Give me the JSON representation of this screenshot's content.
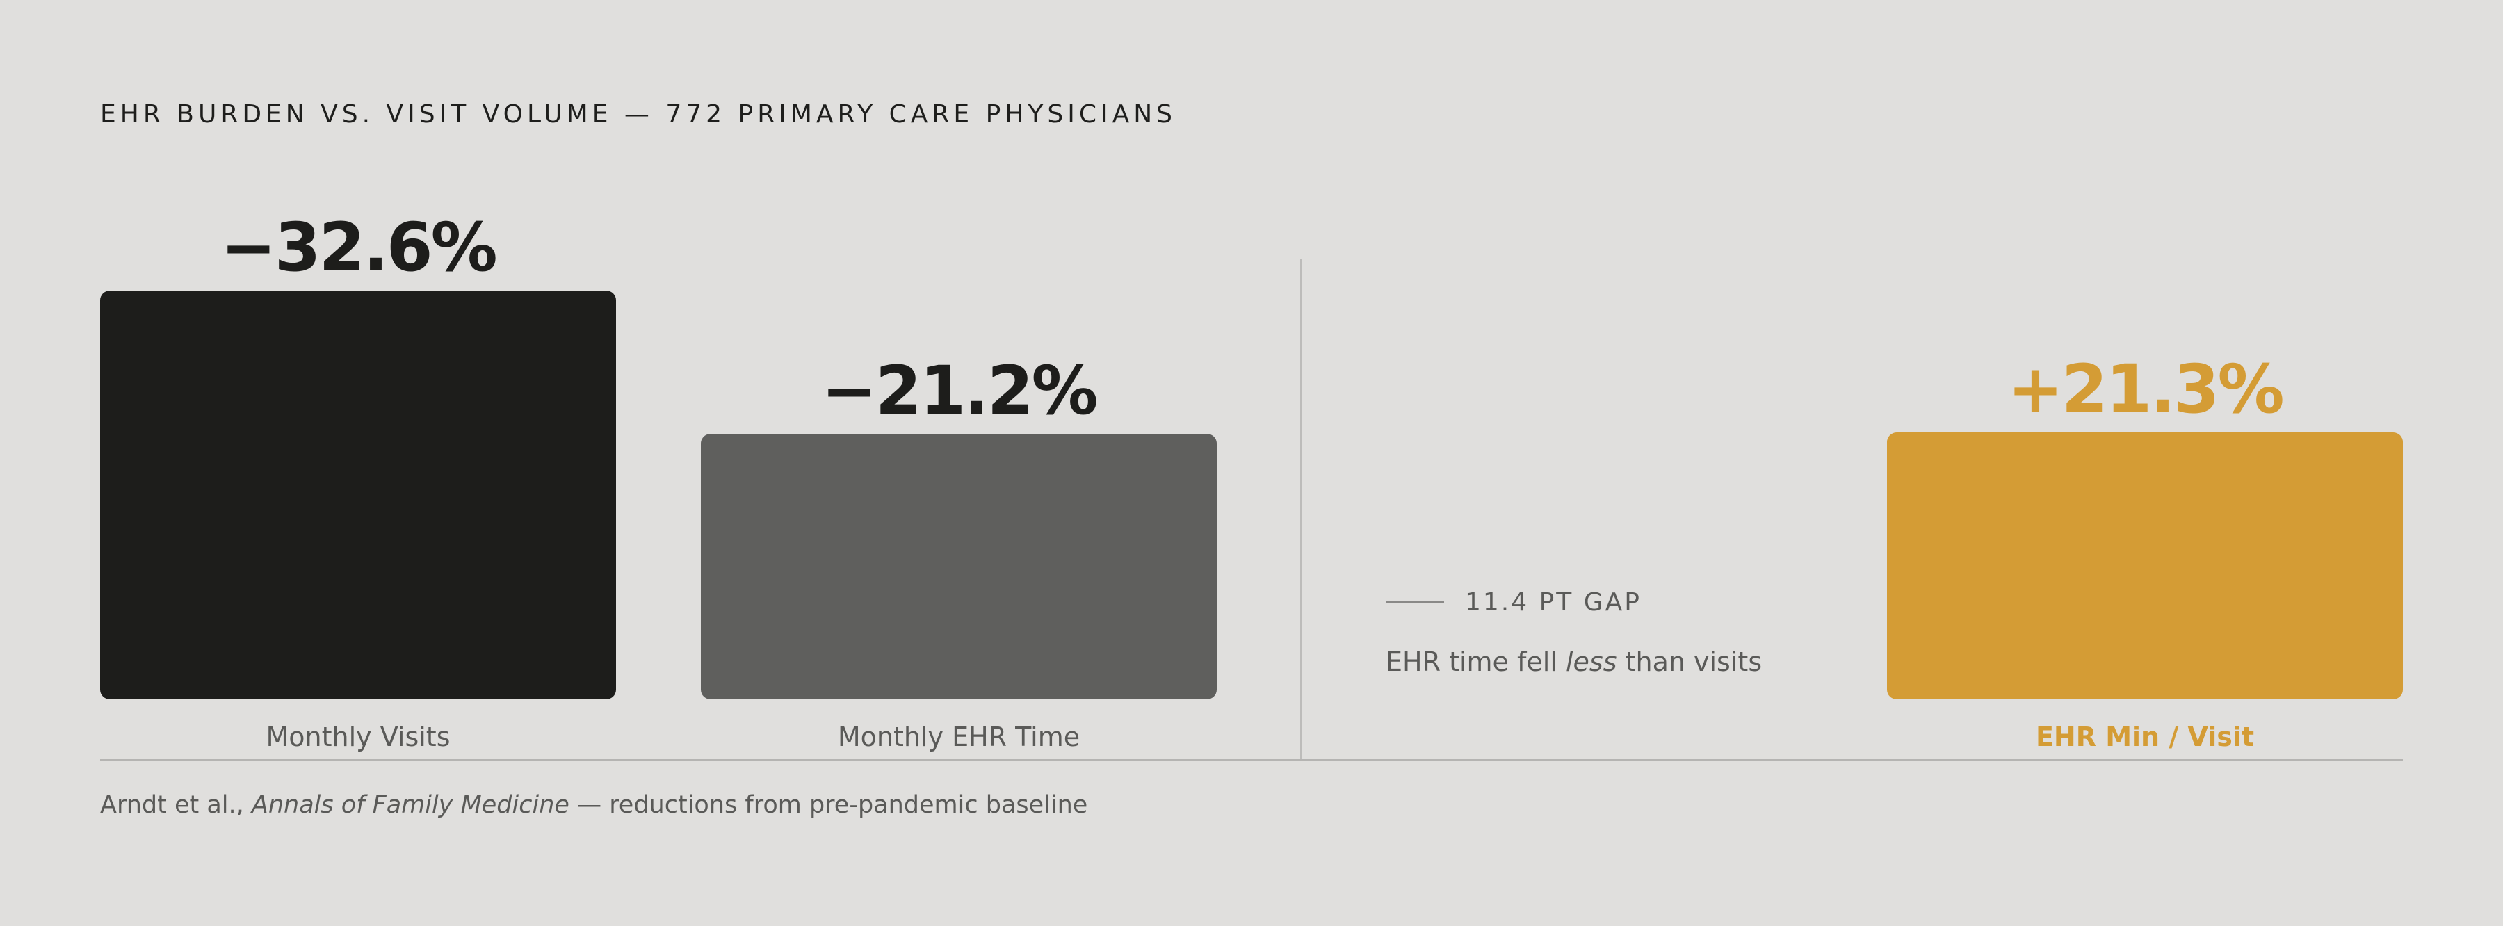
{
  "chart_data": {
    "type": "bar",
    "title": "EHR BURDEN VS. VISIT VOLUME — 772 PRIMARY CARE PHYSICIANS",
    "categories": [
      "Monthly Visits",
      "Monthly EHR Time",
      "EHR Min / Visit"
    ],
    "values": [
      -32.6,
      -21.2,
      21.3
    ],
    "value_labels": [
      "−32.6%",
      "−21.2%",
      "+21.3%"
    ],
    "unit": "%",
    "colors": [
      "#1d1d1b",
      "#5f5f5d",
      "#d49c35"
    ],
    "label_colors": [
      "#1d1d1b",
      "#1d1d1b",
      "#d49c35"
    ],
    "category_label_colors": [
      "#5a5a58",
      "#5a5a58",
      "#d49c35"
    ],
    "bar_magnitude_max": 32.6,
    "grid": false,
    "legend": "none",
    "annotation": {
      "gap_label": "11.4 PT GAP",
      "note_prefix": "EHR time fell ",
      "note_emphasis": "less",
      "note_suffix": " than visits"
    },
    "source": {
      "prefix": "Arndt et al., ",
      "journal": "Annals of Family Medicine",
      "suffix": " — reductions from pre-pandemic baseline"
    }
  }
}
